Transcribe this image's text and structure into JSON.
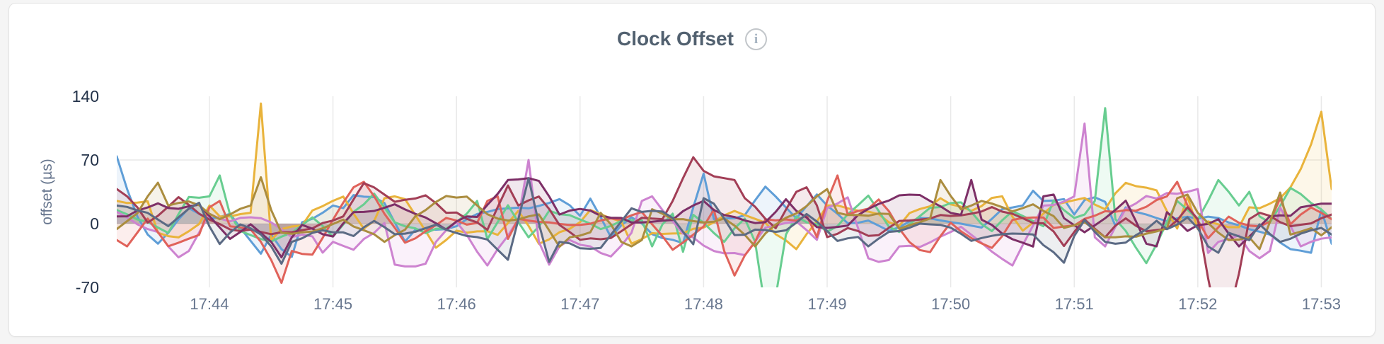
{
  "header": {
    "title": "Clock Offset",
    "info_icon": "i"
  },
  "chart_data": {
    "type": "line",
    "title": "Clock Offset",
    "ylabel": "offset (µs)",
    "xlabel": "",
    "x_start": "17:43:15",
    "x_end": "17:53:05",
    "x_step_seconds": 5,
    "ylim": [
      -70,
      140
    ],
    "y_ticks": [
      {
        "label": "140",
        "value": 140
      },
      {
        "label": "70",
        "value": 70
      },
      {
        "label": "0",
        "value": 0
      },
      {
        "label": "-70",
        "value": -70
      }
    ],
    "x_ticks": [
      {
        "label": "17:44",
        "seconds": 45
      },
      {
        "label": "17:45",
        "seconds": 105
      },
      {
        "label": "17:46",
        "seconds": 165
      },
      {
        "label": "17:47",
        "seconds": 225
      },
      {
        "label": "17:48",
        "seconds": 285
      },
      {
        "label": "17:49",
        "seconds": 345
      },
      {
        "label": "17:50",
        "seconds": 405
      },
      {
        "label": "17:51",
        "seconds": 465
      },
      {
        "label": "17:52",
        "seconds": 525
      },
      {
        "label": "17:53",
        "seconds": 585
      }
    ],
    "total_seconds": 590,
    "grid": "on",
    "legend": "none",
    "series": [
      {
        "name": "blue",
        "color": "#5f9ed7",
        "values": [
          74.0,
          38.0,
          8.0,
          -12.0,
          -22.0,
          -10.0,
          4.7,
          17.0,
          10.9,
          5.1,
          7.2,
          10.9,
          -4.6,
          -18.9,
          -33.0,
          -12.0,
          -28.0,
          -36.4,
          1.5,
          5.4,
          12.0,
          20.0,
          17.0,
          31.4,
          29.6,
          29.2,
          22.7,
          1.4,
          -19.7,
          -6.7,
          -6.1,
          -6.6,
          -6.0,
          -2.8,
          5.0,
          10.6,
          12.9,
          16.0,
          16.8,
          17.6,
          16.9,
          19.5,
          22.8,
          27.0,
          20.2,
          8.6,
          27.5,
          7.2,
          -15.0,
          -1.9,
          6.9,
          0.2,
          -11.5,
          -15.8,
          -17.7,
          -21.4,
          18.0,
          55.0,
          5.0,
          5.9,
          5.8,
          9.4,
          25.7,
          40.7,
          29.8,
          17.8,
          5.9,
          19.2,
          32.1,
          19.8,
          10.8,
          0.5,
          1.0,
          3.4,
          -2.2,
          -8.0,
          -3.8,
          2.3,
          6.3,
          5.8,
          3.6,
          1.6,
          0.0,
          -2.2,
          -4.3,
          5.3,
          16.0,
          17.8,
          20.0,
          36.2,
          25.0,
          25.4,
          27.0,
          10.1,
          26.0,
          29.0,
          24.0,
          -2.4,
          18.0,
          12.9,
          10.0,
          6.2,
          2.8,
          5.9,
          7.6,
          5.5,
          7.7,
          6.2,
          1.3,
          -1.8,
          -6.1,
          -8.8,
          -12.0,
          -20.7,
          -28.0,
          -29.7,
          -32.0,
          15.5,
          -22.0
        ]
      },
      {
        "name": "gold",
        "color": "#e9b33b",
        "values": [
          25.0,
          22.7,
          23.2,
          24.6,
          -10.0,
          -13.7,
          -15.1,
          -8.3,
          -0.4,
          20.0,
          8.0,
          7.9,
          10.5,
          12.0,
          132.0,
          -18.0,
          -6.0,
          -3.1,
          -2.0,
          14.5,
          19.3,
          25.1,
          29.8,
          11.0,
          -5.5,
          3.1,
          28.0,
          30.0,
          27.0,
          9.5,
          -8.1,
          -26.4,
          -17.9,
          -7.7,
          -9.9,
          -8.5,
          -8.3,
          -12.3,
          0.7,
          14.1,
          -2.4,
          -22.1,
          -17.3,
          -9.4,
          -5.7,
          1.6,
          15.1,
          10.3,
          5.9,
          2.5,
          -22.0,
          -16.9,
          -10.4,
          -11.3,
          -10.8,
          -10.6,
          -5.7,
          -4.3,
          1.4,
          9.1,
          14.0,
          9.4,
          5.3,
          1.1,
          -11.7,
          -18.4,
          -28.0,
          -11.5,
          2.4,
          20.0,
          20.1,
          16.9,
          14.3,
          13.3,
          10.4,
          1.5,
          -2.3,
          11.7,
          16.1,
          19.1,
          28.0,
          21.2,
          18.7,
          14.1,
          19.4,
          28.3,
          30.1,
          7.7,
          -7.7,
          1.2,
          11.1,
          20.6,
          23.2,
          25.8,
          28.2,
          21.0,
          15.9,
          33.4,
          44.9,
          41.2,
          39.6,
          36.6,
          13.8,
          -5.4,
          30.0,
          -6.0,
          2.5,
          -0.7,
          -3.9,
          -3.9,
          18.0,
          17.0,
          22.0,
          28.0,
          40.0,
          60.0,
          87.0,
          123.0,
          38.0
        ]
      },
      {
        "name": "green",
        "color": "#68cd90",
        "values": [
          15.0,
          10.3,
          4.7,
          1.9,
          -4.3,
          -10.2,
          10.5,
          29.3,
          28.5,
          30.0,
          53.0,
          10.0,
          -8.0,
          -12.5,
          -16.9,
          -19.7,
          -14.3,
          -9.9,
          -1.6,
          6.9,
          -2.6,
          -14.2,
          -1.0,
          13.0,
          21.2,
          33.0,
          17.9,
          1.5,
          -2.9,
          -5.1,
          -10.4,
          -5.5,
          -5.4,
          1.8,
          11.0,
          25.0,
          -17.0,
          1.7,
          20.3,
          1.8,
          -15.0,
          -3.1,
          14.2,
          10.4,
          9.3,
          4.6,
          0.1,
          -6.0,
          -2.5,
          3.1,
          3.8,
          3.9,
          -25.0,
          -0.8,
          11.0,
          -30.9,
          9.7,
          1.0,
          -10.3,
          -20.0,
          -5.1,
          5.5,
          -20.0,
          -95.0,
          -80.0,
          -12.0,
          8.0,
          1.5,
          -0.7,
          -8.8,
          -2.7,
          10.3,
          20.3,
          30.9,
          14.0,
          -3.4,
          -9.2,
          -0.8,
          8.3,
          17.4,
          18.3,
          22.6,
          23.4,
          13.0,
          -0.5,
          -8.2,
          3.7,
          13.7,
          8.5,
          2.8,
          -2.8,
          25.7,
          14.9,
          6.3,
          10.0,
          25.0,
          127.0,
          5.0,
          -8.0,
          -26.5,
          -43.4,
          -22.6,
          1.7,
          25.0,
          15.3,
          4.5,
          25.1,
          48.0,
          35.0,
          20.0,
          35.0,
          8.0,
          1.2,
          19.4,
          39.2,
          32.6,
          22.7,
          15.7,
          5.0
        ]
      },
      {
        "name": "orchid",
        "color": "#cd83d0",
        "values": [
          13.0,
          7.0,
          -0.7,
          -5.9,
          -9.2,
          -25.0,
          -37.0,
          -30.0,
          -9.8,
          10.8,
          5.6,
          2.5,
          6.4,
          7.0,
          6.1,
          1.3,
          -6.2,
          -14.7,
          -12.0,
          -14.0,
          -31.8,
          -20.0,
          -24.4,
          -28.6,
          -16.9,
          -10.0,
          0.7,
          -45.0,
          -47.0,
          -47.0,
          -44.0,
          -20.0,
          -7.2,
          1.9,
          -12.3,
          -30.8,
          -46.0,
          -27.9,
          -13.3,
          5.0,
          70.0,
          -20.0,
          -45.0,
          -25.0,
          -18.0,
          -23.2,
          -25.0,
          -32.2,
          -36.0,
          -24.3,
          -10.0,
          25.0,
          30.0,
          15.0,
          2.6,
          -10.9,
          -15.2,
          -24.0,
          -30.0,
          -32.6,
          -32.3,
          -34.6,
          -19.8,
          -4.4,
          -2.0,
          0.7,
          2.5,
          -7.1,
          -17.7,
          17.1,
          22.2,
          28.9,
          -4.9,
          -38.0,
          -42.0,
          -40.0,
          -25.0,
          -24.3,
          -25.7,
          -20.5,
          -14.3,
          -9.2,
          -3.4,
          -12.2,
          -21.1,
          -30.7,
          -38.7,
          -46.0,
          -23.4,
          -2.1,
          19.8,
          20.5,
          24.3,
          30.0,
          110.0,
          -15.0,
          -25.0,
          -3.6,
          16.3,
          22.3,
          30.4,
          27.6,
          33.7,
          32.9,
          35.0,
          38.0,
          -32.1,
          -20.0,
          -16.8,
          -12.9,
          -30.0,
          -38.0,
          -30.0,
          17.7,
          -2.6,
          -25.0,
          -19.9,
          -16.5,
          -15.0
        ]
      },
      {
        "name": "red",
        "color": "#e0625a",
        "values": [
          -18.0,
          -25.0,
          -9.9,
          5.6,
          -9.3,
          -24.8,
          -20.9,
          -16.5,
          -12.4,
          18.0,
          25.0,
          -2.9,
          -4.1,
          -6.2,
          -20.0,
          -40.0,
          -65.0,
          -30.0,
          -33.2,
          -34.0,
          -15.7,
          4.4,
          23.1,
          40.0,
          46.0,
          30.0,
          10.9,
          -4.5,
          -20.9,
          -16.1,
          -8.4,
          -1.7,
          6.3,
          3.4,
          -1.1,
          0.8,
          25.0,
          30.0,
          -16.7,
          5.3,
          3.4,
          1.9,
          1.5,
          -0.3,
          -1.5,
          -1.4,
          -0.1,
          3.5,
          5.8,
          4.3,
          9.2,
          12.8,
          -0.7,
          -13.7,
          -28.7,
          -20.7,
          -12.1,
          -3.0,
          15.5,
          -30.0,
          -57.0,
          -35.0,
          -20.0,
          4.8,
          3.6,
          4.7,
          3.3,
          9.1,
          -14.8,
          25.0,
          53.0,
          10.0,
          13.9,
          16.4,
          26.5,
          13.7,
          -5.4,
          -20.3,
          -29.0,
          -31.3,
          -13.8,
          1.0,
          -8.5,
          -15.8,
          -21.7,
          -26.6,
          -13.7,
          4.1,
          6.2,
          6.8,
          6.8,
          -4.8,
          -3.1,
          -2.0,
          5.3,
          8.8,
          13.7,
          13.1,
          14.9,
          14.2,
          18.6,
          26.0,
          30.0,
          46.0,
          20.0,
          3.7,
          -16.0,
          -4.0,
          7.8,
          1.0,
          -2.1,
          -3.0,
          2.1,
          28.0,
          -0.6,
          10.0,
          17.8,
          11.9,
          5.0
        ]
      },
      {
        "name": "maroon",
        "color": "#a23e56",
        "values": [
          38.0,
          30.0,
          18.0,
          1.2,
          8.6,
          18.7,
          29.2,
          20.6,
          11.0,
          4.5,
          -0.4,
          -6.4,
          -8.1,
          -6.5,
          -9.1,
          -11.6,
          -9.4,
          -9.4,
          -7.1,
          -5.2,
          0.7,
          3.4,
          8.0,
          26.7,
          44.6,
          39.8,
          32.0,
          24.0,
          26.3,
          27.7,
          31.2,
          22.6,
          12.0,
          12.3,
          5.3,
          1.4,
          -6.8,
          18.2,
          42.0,
          20.0,
          25.6,
          29.8,
          16.2,
          -1.4,
          -9.2,
          -17.7,
          -16.2,
          -17.1,
          -15.7,
          -8.3,
          -0.7,
          6.5,
          5.6,
          5.0,
          25.0,
          50.0,
          73.0,
          58.0,
          52.0,
          50.0,
          48.0,
          28.0,
          18.6,
          5.4,
          -5.0,
          15.5,
          35.0,
          40.0,
          20.0,
          -14.8,
          -11.1,
          -4.8,
          -8.1,
          -13.4,
          -12.6,
          -4.5,
          3.0,
          3.5,
          4.4,
          5.7,
          9.5,
          8.5,
          9.1,
          11.0,
          13.4,
          18.3,
          13.2,
          10.9,
          6.0,
          0.7,
          0.4,
          -8.6,
          -24.6,
          -9.1,
          4.7,
          -5.6,
          -15.0,
          -2.2,
          5.8,
          -2.4,
          -8.3,
          -7.0,
          -5.7,
          3.7,
          18.0,
          5.0,
          -60.0,
          -115.0,
          -100.0,
          -55.0,
          5.0,
          12.0,
          8.6,
          1.6,
          -2.8,
          -1.2,
          0.3,
          6.0,
          10.0
        ]
      },
      {
        "name": "plum",
        "color": "#7d2f67",
        "values": [
          8.0,
          8.1,
          14.4,
          17.8,
          22.3,
          17.2,
          16.3,
          19.1,
          20.8,
          8.3,
          -4.2,
          -16.7,
          -9.2,
          -0.6,
          -10.3,
          -20.0,
          -37.0,
          -15.0,
          -1.3,
          -5.5,
          -11.6,
          -14.1,
          0.2,
          12.7,
          12.9,
          14.0,
          17.4,
          21.3,
          15.6,
          10.8,
          6.8,
          0.5,
          -6.5,
          2.5,
          7.9,
          7.4,
          20.6,
          32.8,
          48.0,
          48.6,
          50.0,
          47.0,
          30.0,
          10.0,
          14.4,
          16.2,
          14.4,
          8.6,
          6.5,
          6.3,
          1.3,
          1.4,
          2.1,
          3.3,
          4.1,
          13.8,
          20.0,
          25.0,
          15.0,
          9.5,
          7.3,
          3.6,
          0.7,
          1.6,
          13.0,
          26.8,
          14.1,
          6.8,
          -3.8,
          -4.7,
          -3.6,
          -2.1,
          9.5,
          16.2,
          21.7,
          25.4,
          31.1,
          31.9,
          31.5,
          25.0,
          19.1,
          11.8,
          9.7,
          48.0,
          4.4,
          -1.4,
          -10.9,
          -17.1,
          -20.9,
          -25.1,
          30.0,
          32.0,
          6.1,
          -1.7,
          -9.4,
          -1.9,
          6.0,
          15.1,
          25.3,
          2.6,
          -22.0,
          -25.0,
          12.6,
          3.1,
          -8.0,
          -1.6,
          -0.3,
          4.9,
          -11.0,
          -25.0,
          -14.3,
          -3.3,
          8.0,
          9.2,
          8.6,
          18.0,
          20.0,
          22.0,
          22.0
        ]
      },
      {
        "name": "olive",
        "color": "#ab8d3f",
        "values": [
          -6.0,
          2.8,
          11.4,
          30.0,
          45.0,
          20.0,
          22.8,
          24.4,
          20.2,
          10.9,
          4.9,
          10.2,
          16.3,
          20.0,
          51.0,
          15.0,
          -10.0,
          -11.1,
          -9.5,
          -8.6,
          -5.1,
          -0.4,
          4.4,
          -3.1,
          -7.2,
          -11.7,
          -20.0,
          -12.6,
          -6.7,
          8.1,
          14.9,
          23.9,
          30.4,
          28.7,
          29.8,
          20.0,
          10.4,
          5.6,
          3.4,
          4.7,
          8.0,
          10.2,
          -7.3,
          -25.4,
          -15.0,
          -13.1,
          -9.5,
          11.9,
          -0.8,
          -20.0,
          -25.0,
          -18.0,
          15.9,
          11.0,
          4.8,
          5.0,
          2.8,
          1.4,
          2.2,
          5.7,
          -2.1,
          -12.2,
          -25.0,
          -10.7,
          -1.0,
          6.5,
          11.3,
          19.3,
          30.0,
          38.0,
          12.0,
          9.5,
          9.5,
          8.7,
          11.1,
          10.7,
          -5.7,
          -1.7,
          1.6,
          5.7,
          48.0,
          30.5,
          15.8,
          19.9,
          25.0,
          22.1,
          18.1,
          13.5,
          17.1,
          21.3,
          14.1,
          8.3,
          -4.7,
          -1.8,
          1.6,
          -6.6,
          -15.0,
          -14.9,
          -13.9,
          -14.3,
          -11.0,
          -8.5,
          -5.0,
          28.0,
          32.0,
          12.0,
          0.7,
          -9.9,
          -18.0,
          -17.5,
          -15.0,
          -28.0,
          1.7,
          34.2,
          -12.0,
          -8.7,
          -5.0,
          -12.8,
          -4.0
        ]
      },
      {
        "name": "slate",
        "color": "#5b6a84",
        "values": [
          20.0,
          18.4,
          14.6,
          11.9,
          4.6,
          -2.7,
          7.0,
          16.5,
          23.0,
          -3.0,
          -22.3,
          -9.8,
          -0.8,
          -5.1,
          -11.9,
          -25.0,
          -44.0,
          -20.0,
          -16.1,
          -10.1,
          -7.3,
          -9.5,
          -9.6,
          -13.6,
          -4.0,
          3.0,
          -3.8,
          -11.6,
          -11.0,
          -8.9,
          -4.9,
          -1.1,
          -6.8,
          -10.3,
          -13.5,
          -14.8,
          -17.4,
          -28.7,
          -39.7,
          4.4,
          50.0,
          0.0,
          -42.0,
          -20.0,
          -21.6,
          -27.1,
          -27.6,
          -26.7,
          -12.2,
          2.4,
          16.9,
          12.9,
          14.1,
          13.3,
          6.2,
          -8.9,
          -22.6,
          28.0,
          22.0,
          5.6,
          -12.5,
          -12.1,
          -6.5,
          -7.0,
          -9.0,
          -7.3,
          1.0,
          10.6,
          2.3,
          -8.2,
          -19.0,
          -16.1,
          -14.6,
          -25.0,
          -16.4,
          -9.0,
          -8.1,
          -4.4,
          -0.0,
          -0.8,
          -1.3,
          -4.4,
          -11.1,
          -18.9,
          -15.8,
          -13.4,
          -11.6,
          -10.9,
          -11.2,
          -11.9,
          -23.6,
          -31.4,
          -42.9,
          -13.6,
          4.0,
          -9.1,
          -20.0,
          -22.1,
          -20.8,
          -12.6,
          -6.4,
          3.2,
          -6.1,
          -0.9,
          6.9,
          -5.0,
          -25.0,
          -32.0,
          -10.0,
          -13.9,
          -18.1,
          -0.7,
          -11.3,
          -20.0,
          -16.6,
          -11.0,
          -7.3,
          -4.7,
          -12.0
        ]
      }
    ]
  },
  "style": {
    "accent_title": "#51606f",
    "y_tick_color": "#24334a",
    "x_tick_color": "#67768e",
    "axis_title_color": "#67768e",
    "grid_color": "#e9e9e9",
    "card_bg": "#ffffff",
    "page_bg": "#f5f5f5",
    "fill_opacity": 0.11,
    "line_width": 3
  }
}
